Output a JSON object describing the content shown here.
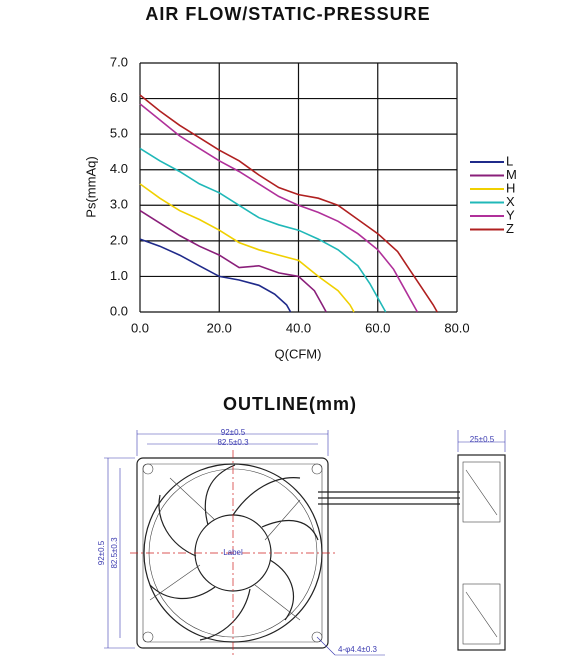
{
  "chart_data": {
    "type": "line",
    "title": "AIR FLOW/STATIC-PRESSURE",
    "x_label": "Q(CFM)",
    "y_label": "Ps(mmAq)",
    "xlim": [
      0,
      80
    ],
    "ylim": [
      0,
      7
    ],
    "xticks": [
      {
        "value": 0,
        "label": "0.0"
      },
      {
        "value": 20,
        "label": "20.0"
      },
      {
        "value": 40,
        "label": "40.0"
      },
      {
        "value": 60,
        "label": "60.0"
      },
      {
        "value": 80,
        "label": "80.0"
      }
    ],
    "yticks": [
      {
        "value": 0,
        "label": "0.0"
      },
      {
        "value": 1,
        "label": "1.0"
      },
      {
        "value": 2,
        "label": "2.0"
      },
      {
        "value": 3,
        "label": "3.0"
      },
      {
        "value": 4,
        "label": "4.0"
      },
      {
        "value": 5,
        "label": "5.0"
      },
      {
        "value": 6,
        "label": "6.0"
      },
      {
        "value": 7,
        "label": "7.0"
      }
    ],
    "grid": true,
    "legend": "right",
    "series": [
      {
        "name": "L",
        "color": "#1f2a8a",
        "x": [
          0,
          5,
          10,
          15,
          20,
          25,
          30,
          34,
          37,
          38
        ],
        "values": [
          2.05,
          1.85,
          1.6,
          1.3,
          1.0,
          0.9,
          0.75,
          0.5,
          0.2,
          0
        ]
      },
      {
        "name": "M",
        "color": "#8a1f7a",
        "x": [
          0,
          5,
          10,
          15,
          20,
          25,
          30,
          35,
          40,
          44,
          46,
          47
        ],
        "values": [
          2.85,
          2.5,
          2.15,
          1.85,
          1.6,
          1.25,
          1.3,
          1.1,
          1.0,
          0.6,
          0.2,
          0
        ]
      },
      {
        "name": "H",
        "color": "#f0d000",
        "x": [
          0,
          5,
          10,
          15,
          20,
          25,
          30,
          35,
          40,
          45,
          50,
          53,
          54
        ],
        "values": [
          3.6,
          3.2,
          2.85,
          2.6,
          2.3,
          1.95,
          1.75,
          1.6,
          1.45,
          1.0,
          0.6,
          0.2,
          0
        ]
      },
      {
        "name": "X",
        "color": "#20b8b8",
        "x": [
          0,
          5,
          10,
          15,
          20,
          25,
          30,
          35,
          40,
          45,
          50,
          55,
          58,
          61,
          62
        ],
        "values": [
          4.6,
          4.25,
          3.95,
          3.6,
          3.35,
          3.0,
          2.65,
          2.45,
          2.3,
          2.05,
          1.75,
          1.3,
          0.8,
          0.2,
          0
        ]
      },
      {
        "name": "Y",
        "color": "#b0309a",
        "x": [
          0,
          5,
          10,
          15,
          20,
          25,
          30,
          35,
          40,
          45,
          50,
          55,
          60,
          64,
          67,
          69,
          70
        ],
        "values": [
          5.85,
          5.4,
          4.95,
          4.6,
          4.25,
          3.95,
          3.6,
          3.25,
          3.0,
          2.8,
          2.55,
          2.2,
          1.75,
          1.2,
          0.6,
          0.2,
          0
        ]
      },
      {
        "name": "Z",
        "color": "#b02020",
        "x": [
          0,
          5,
          10,
          15,
          20,
          25,
          30,
          35,
          40,
          45,
          50,
          55,
          60,
          65,
          68,
          71,
          74,
          75
        ],
        "values": [
          6.1,
          5.65,
          5.25,
          4.9,
          4.55,
          4.25,
          3.85,
          3.5,
          3.3,
          3.2,
          3.0,
          2.6,
          2.2,
          1.7,
          1.2,
          0.7,
          0.2,
          0
        ]
      }
    ]
  },
  "outline": {
    "title": "OUTLINE(mm)",
    "width_outer": "92±0.5",
    "width_inner": "82.5±0.3",
    "height_outer": "92±0.5",
    "height_inner": "82.5±0.3",
    "depth": "25±0.5",
    "hub_label": "Label",
    "holes": "4-φ4.4±0.3"
  }
}
